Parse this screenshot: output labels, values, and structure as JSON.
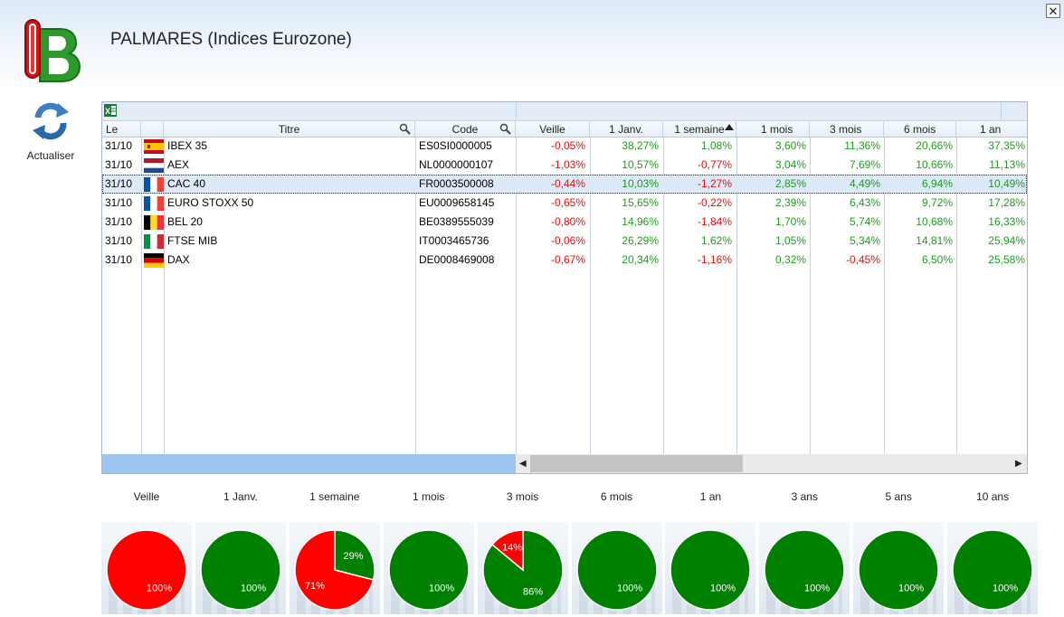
{
  "app": {
    "title": "PALMARES (Indices Eurozone)",
    "close_glyph": "✕"
  },
  "toolbar": {
    "refresh_label": "Actualiser"
  },
  "grid": {
    "columns": {
      "le": "Le",
      "titre": "Titre",
      "code": "Code",
      "veille": "Veille",
      "janv": "1 Janv.",
      "semaine": "1 semaine",
      "mois1": "1 mois",
      "mois3": "3 mois",
      "mois6": "6 mois",
      "an1": "1 an"
    },
    "rows": [
      {
        "le": "31/10",
        "flag": "spain",
        "titre": "IBEX 35",
        "code": "ES0SI0000005",
        "veille": "-0,05%",
        "janv": "38,27%",
        "semaine": "1,08%",
        "mois1": "3,60%",
        "mois3": "11,36%",
        "mois6": "20,66%",
        "an1": "37,35%"
      },
      {
        "le": "31/10",
        "flag": "netherlands",
        "titre": "AEX",
        "code": "NL0000000107",
        "veille": "-1,03%",
        "janv": "10,57%",
        "semaine": "-0,77%",
        "mois1": "3,04%",
        "mois3": "7,69%",
        "mois6": "10,66%",
        "an1": "11,13%"
      },
      {
        "le": "31/10",
        "flag": "france",
        "titre": "CAC 40",
        "code": "FR0003500008",
        "veille": "-0,44%",
        "janv": "10,03%",
        "semaine": "-1,27%",
        "mois1": "2,85%",
        "mois3": "4,49%",
        "mois6": "6,94%",
        "an1": "10,49%"
      },
      {
        "le": "31/10",
        "flag": "france",
        "titre": "EURO STOXX 50",
        "code": "EU0009658145",
        "veille": "-0,65%",
        "janv": "15,65%",
        "semaine": "-0,22%",
        "mois1": "2,39%",
        "mois3": "6,43%",
        "mois6": "9,72%",
        "an1": "17,28%"
      },
      {
        "le": "31/10",
        "flag": "belgium",
        "titre": "BEL 20",
        "code": "BE0389555039",
        "veille": "-0,80%",
        "janv": "14,96%",
        "semaine": "-1,84%",
        "mois1": "1,70%",
        "mois3": "5,74%",
        "mois6": "10,68%",
        "an1": "16,33%"
      },
      {
        "le": "31/10",
        "flag": "italy",
        "titre": "FTSE MIB",
        "code": "IT0003465736",
        "veille": "-0,06%",
        "janv": "26,29%",
        "semaine": "1,62%",
        "mois1": "1,05%",
        "mois3": "5,34%",
        "mois6": "14,81%",
        "an1": "25,94%"
      },
      {
        "le": "31/10",
        "flag": "germany",
        "titre": "DAX",
        "code": "DE0008469008",
        "veille": "-0,67%",
        "janv": "20,34%",
        "semaine": "-1,16%",
        "mois1": "0,32%",
        "mois3": "-0,45%",
        "mois6": "6,50%",
        "an1": "25,58%"
      }
    ],
    "selected_row": 2
  },
  "colors": {
    "positive": "#1f9b1f",
    "negative": "#e01010",
    "pie_green": "#008000",
    "pie_red": "#ff0000"
  },
  "icons": [
    "ib-logo-icon",
    "refresh-icon",
    "excel-icon",
    "magnifier-icon",
    "sort-asc-icon",
    "close-icon"
  ],
  "pies": [
    {
      "label": "Veille",
      "up": 0,
      "down": 100,
      "up_text": "",
      "down_text": "100%"
    },
    {
      "label": "1 Janv.",
      "up": 100,
      "down": 0,
      "up_text": "100%",
      "down_text": ""
    },
    {
      "label": "1 semaine",
      "up": 29,
      "down": 71,
      "up_text": "29%",
      "down_text": "71%"
    },
    {
      "label": "1 mois",
      "up": 100,
      "down": 0,
      "up_text": "100%",
      "down_text": ""
    },
    {
      "label": "3 mois",
      "up": 86,
      "down": 14,
      "up_text": "86%",
      "down_text": "14%"
    },
    {
      "label": "6 mois",
      "up": 100,
      "down": 0,
      "up_text": "100%",
      "down_text": ""
    },
    {
      "label": "1 an",
      "up": 100,
      "down": 0,
      "up_text": "100%",
      "down_text": ""
    },
    {
      "label": "3 ans",
      "up": 100,
      "down": 0,
      "up_text": "100%",
      "down_text": ""
    },
    {
      "label": "5 ans",
      "up": 100,
      "down": 0,
      "up_text": "100%",
      "down_text": ""
    },
    {
      "label": "10 ans",
      "up": 100,
      "down": 0,
      "up_text": "100%",
      "down_text": ""
    }
  ]
}
